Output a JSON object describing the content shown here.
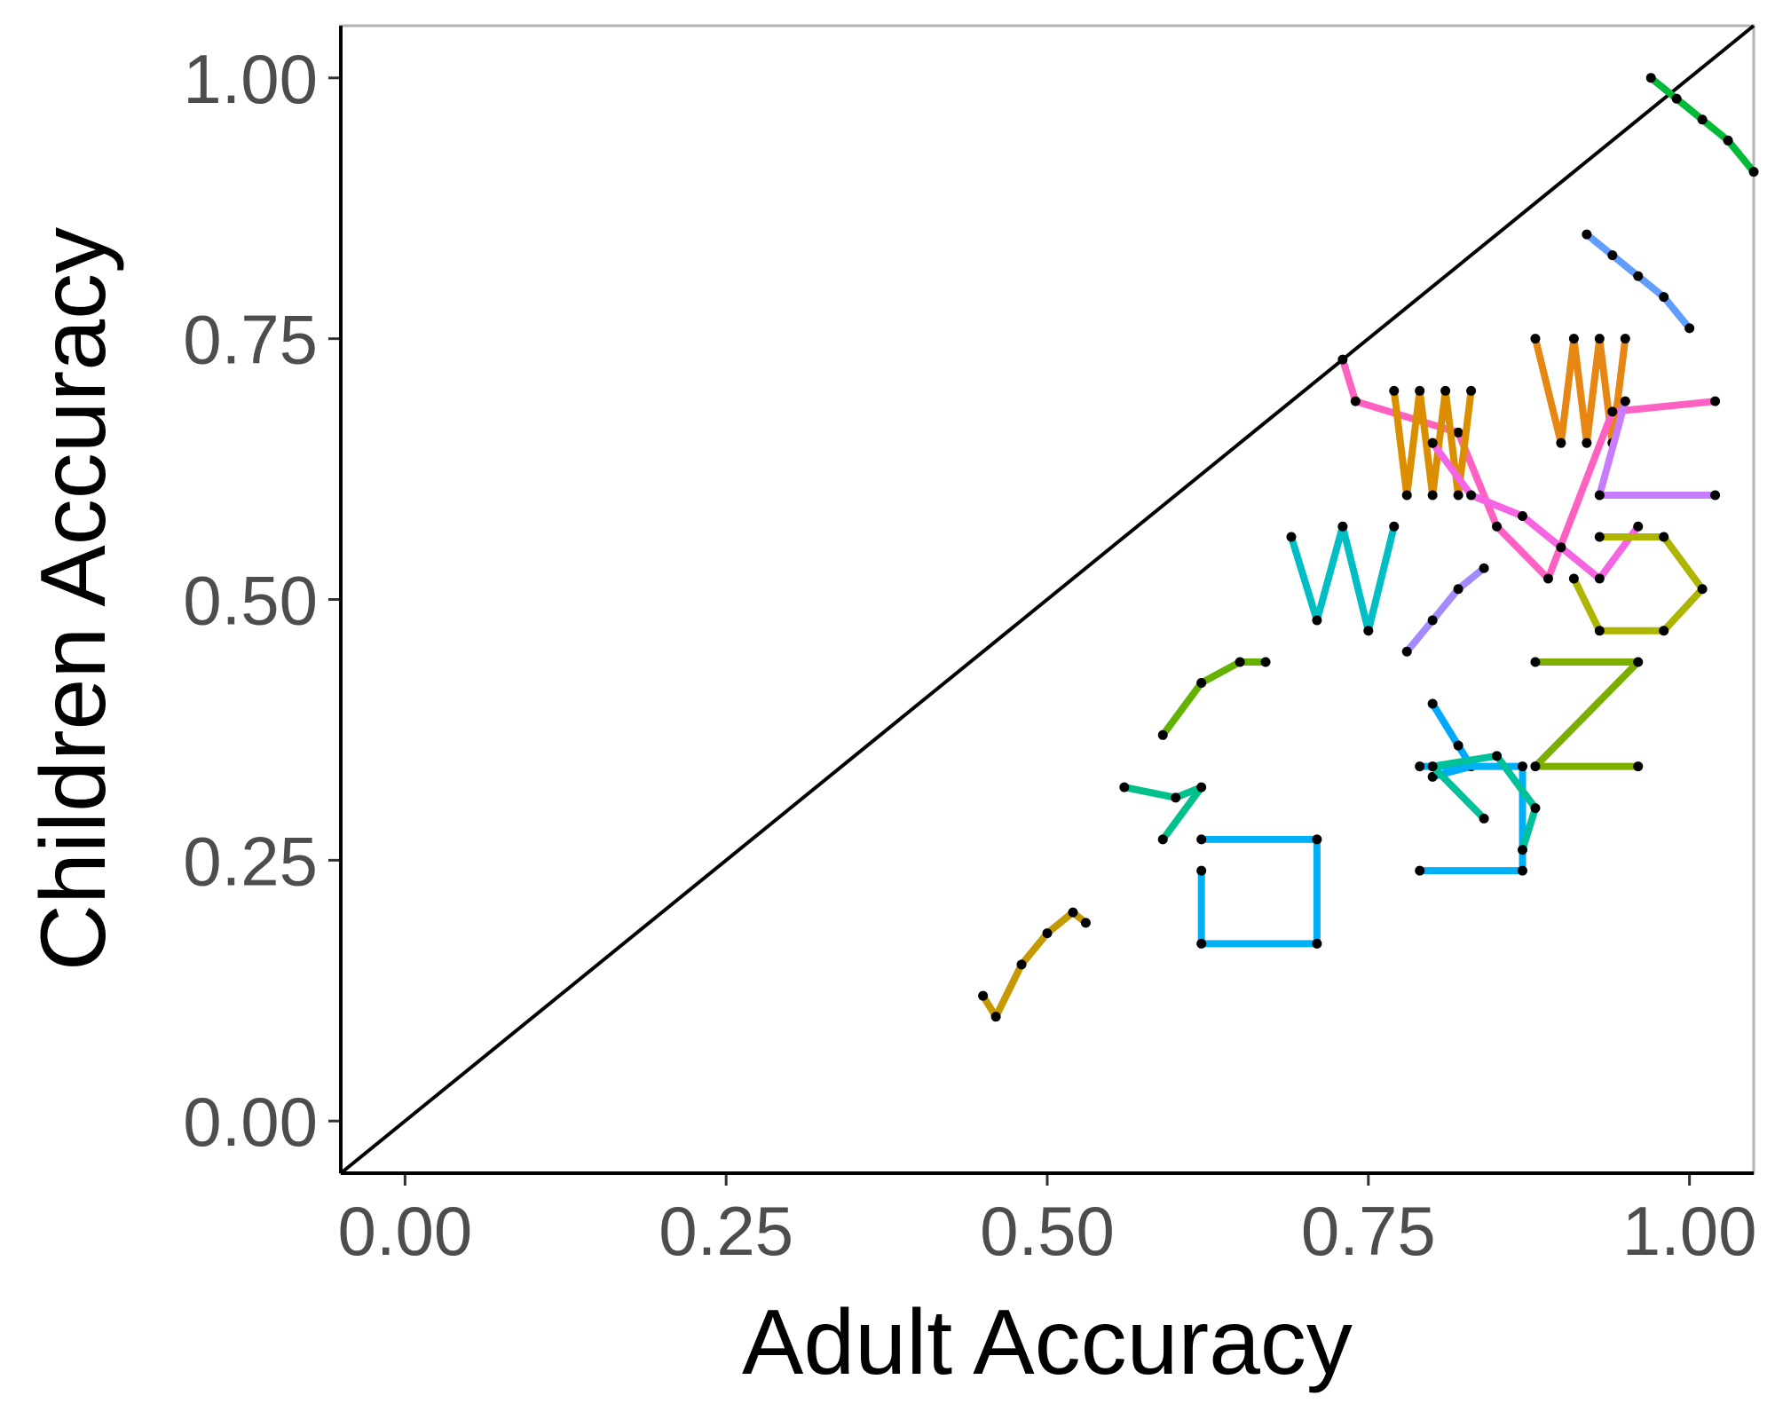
{
  "chart_data": {
    "type": "scatter",
    "xlabel": "Adult Accuracy",
    "ylabel": "Children Accuracy",
    "xlim": [
      -0.05,
      1.05
    ],
    "ylim": [
      -0.05,
      1.05
    ],
    "xticks": [
      "0.00",
      "0.25",
      "0.50",
      "0.75",
      "1.00"
    ],
    "yticks": [
      "0.00",
      "0.25",
      "0.50",
      "0.75",
      "1.00"
    ],
    "xtick_values": [
      0,
      0.25,
      0.5,
      0.75,
      1.0
    ],
    "ytick_values": [
      0,
      0.25,
      0.5,
      0.75,
      1.0
    ],
    "reference_line": "y = x",
    "grid": false,
    "legend": "none",
    "point_color": "#000000",
    "series": [
      {
        "color": "#00ba38",
        "points": [
          [
            0.97,
            1.0
          ],
          [
            0.99,
            0.98
          ],
          [
            1.01,
            0.96
          ],
          [
            1.03,
            0.94
          ],
          [
            1.05,
            0.91
          ]
        ]
      },
      {
        "color": "#619cff",
        "points": [
          [
            0.92,
            0.85
          ],
          [
            0.94,
            0.83
          ],
          [
            0.96,
            0.81
          ],
          [
            0.98,
            0.79
          ],
          [
            1.0,
            0.76
          ]
        ]
      },
      {
        "color": "#e68613",
        "points": [
          [
            0.88,
            0.75
          ],
          [
            0.9,
            0.65
          ],
          [
            0.91,
            0.75
          ],
          [
            0.92,
            0.65
          ],
          [
            0.93,
            0.75
          ],
          [
            0.94,
            0.65
          ],
          [
            0.95,
            0.75
          ]
        ]
      },
      {
        "color": "#ff61c3",
        "points": [
          [
            0.73,
            0.73
          ],
          [
            0.74,
            0.69
          ],
          [
            0.82,
            0.66
          ],
          [
            0.85,
            0.57
          ],
          [
            0.89,
            0.52
          ],
          [
            0.94,
            0.68
          ],
          [
            1.02,
            0.69
          ]
        ]
      },
      {
        "color": "#db8e00",
        "points": [
          [
            0.77,
            0.7
          ],
          [
            0.78,
            0.6
          ],
          [
            0.79,
            0.7
          ],
          [
            0.8,
            0.6
          ],
          [
            0.81,
            0.7
          ],
          [
            0.82,
            0.6
          ],
          [
            0.83,
            0.7
          ]
        ]
      },
      {
        "color": "#c77cff",
        "points": [
          [
            0.95,
            0.69
          ],
          [
            0.93,
            0.6
          ],
          [
            1.02,
            0.6
          ]
        ]
      },
      {
        "color": "#f564e3",
        "points": [
          [
            0.8,
            0.65
          ],
          [
            0.83,
            0.6
          ],
          [
            0.87,
            0.58
          ],
          [
            0.9,
            0.55
          ],
          [
            0.93,
            0.52
          ],
          [
            0.96,
            0.57
          ]
        ]
      },
      {
        "color": "#00bfc4",
        "points": [
          [
            0.69,
            0.56
          ],
          [
            0.71,
            0.48
          ],
          [
            0.73,
            0.57
          ],
          [
            0.75,
            0.47
          ],
          [
            0.77,
            0.57
          ]
        ]
      },
      {
        "color": "#aeb500",
        "points": [
          [
            0.91,
            0.52
          ],
          [
            0.93,
            0.47
          ],
          [
            0.98,
            0.47
          ],
          [
            1.01,
            0.51
          ],
          [
            0.98,
            0.56
          ],
          [
            0.93,
            0.56
          ]
        ]
      },
      {
        "color": "#a58aff",
        "points": [
          [
            0.84,
            0.53
          ],
          [
            0.82,
            0.51
          ],
          [
            0.8,
            0.48
          ],
          [
            0.78,
            0.45
          ]
        ]
      },
      {
        "color": "#64b200",
        "points": [
          [
            0.59,
            0.37
          ],
          [
            0.62,
            0.42
          ],
          [
            0.65,
            0.44
          ],
          [
            0.67,
            0.44
          ]
        ]
      },
      {
        "color": "#00a9ff",
        "points": [
          [
            0.8,
            0.4
          ],
          [
            0.82,
            0.36
          ],
          [
            0.83,
            0.34
          ],
          [
            0.8,
            0.33
          ]
        ]
      },
      {
        "color": "#7cae00",
        "points": [
          [
            0.88,
            0.44
          ],
          [
            0.96,
            0.44
          ],
          [
            0.88,
            0.34
          ],
          [
            0.96,
            0.34
          ]
        ]
      },
      {
        "color": "#00c08b",
        "points": [
          [
            0.56,
            0.32
          ],
          [
            0.6,
            0.31
          ],
          [
            0.62,
            0.32
          ],
          [
            0.59,
            0.27
          ]
        ]
      },
      {
        "color": "#00b0f6",
        "points": [
          [
            0.62,
            0.27
          ],
          [
            0.71,
            0.27
          ],
          [
            0.71,
            0.17
          ],
          [
            0.62,
            0.17
          ],
          [
            0.62,
            0.24
          ]
        ]
      },
      {
        "color": "#00b0f6",
        "points": [
          [
            0.79,
            0.34
          ],
          [
            0.87,
            0.34
          ],
          [
            0.87,
            0.24
          ],
          [
            0.79,
            0.24
          ]
        ]
      },
      {
        "color": "#00c19a",
        "points": [
          [
            0.84,
            0.29
          ],
          [
            0.8,
            0.34
          ],
          [
            0.85,
            0.35
          ],
          [
            0.88,
            0.3
          ],
          [
            0.87,
            0.26
          ]
        ]
      },
      {
        "color": "#c49a00",
        "points": [
          [
            0.45,
            0.12
          ],
          [
            0.46,
            0.1
          ],
          [
            0.48,
            0.15
          ],
          [
            0.5,
            0.18
          ],
          [
            0.52,
            0.2
          ],
          [
            0.53,
            0.19
          ]
        ]
      }
    ]
  }
}
